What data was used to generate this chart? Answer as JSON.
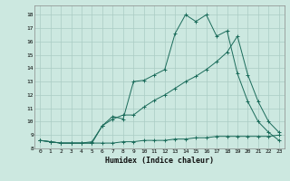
{
  "xlabel": "Humidex (Indice chaleur)",
  "background_color": "#cce8e0",
  "grid_color": "#aaccC4",
  "line_color": "#1a6b5a",
  "xlim": [
    -0.5,
    23.5
  ],
  "ylim": [
    8.0,
    18.7
  ],
  "yticks": [
    8,
    9,
    10,
    11,
    12,
    13,
    14,
    15,
    16,
    17,
    18
  ],
  "xticks": [
    0,
    1,
    2,
    3,
    4,
    5,
    6,
    7,
    8,
    9,
    10,
    11,
    12,
    13,
    14,
    15,
    16,
    17,
    18,
    19,
    20,
    21,
    22,
    23
  ],
  "line1_x": [
    0,
    1,
    2,
    3,
    4,
    5,
    6,
    7,
    8,
    9,
    10,
    11,
    12,
    13,
    14,
    15,
    16,
    17,
    18,
    19,
    20,
    21,
    22,
    23
  ],
  "line1_y": [
    8.6,
    8.5,
    8.4,
    8.4,
    8.4,
    8.4,
    8.4,
    8.4,
    8.5,
    8.5,
    8.6,
    8.6,
    8.6,
    8.7,
    8.7,
    8.8,
    8.8,
    8.9,
    8.9,
    8.9,
    8.9,
    8.9,
    8.9,
    9.0
  ],
  "line2_x": [
    0,
    1,
    2,
    3,
    4,
    5,
    6,
    7,
    8,
    9,
    10,
    11,
    12,
    13,
    14,
    15,
    16,
    17,
    18,
    19,
    20,
    21,
    22,
    23
  ],
  "line2_y": [
    8.6,
    8.5,
    8.4,
    8.4,
    8.4,
    8.5,
    9.7,
    10.4,
    10.2,
    13.0,
    13.1,
    13.5,
    13.9,
    16.6,
    18.0,
    17.5,
    18.0,
    16.4,
    16.8,
    13.6,
    11.5,
    10.0,
    9.2,
    8.6
  ],
  "line3_x": [
    0,
    1,
    2,
    3,
    4,
    5,
    6,
    7,
    8,
    9,
    10,
    11,
    12,
    13,
    14,
    15,
    16,
    17,
    18,
    19,
    20,
    21,
    22,
    23
  ],
  "line3_y": [
    8.6,
    8.5,
    8.4,
    8.4,
    8.4,
    8.4,
    9.7,
    10.2,
    10.5,
    10.5,
    11.1,
    11.6,
    12.0,
    12.5,
    13.0,
    13.4,
    13.9,
    14.5,
    15.2,
    16.4,
    13.5,
    11.5,
    10.0,
    9.2
  ]
}
